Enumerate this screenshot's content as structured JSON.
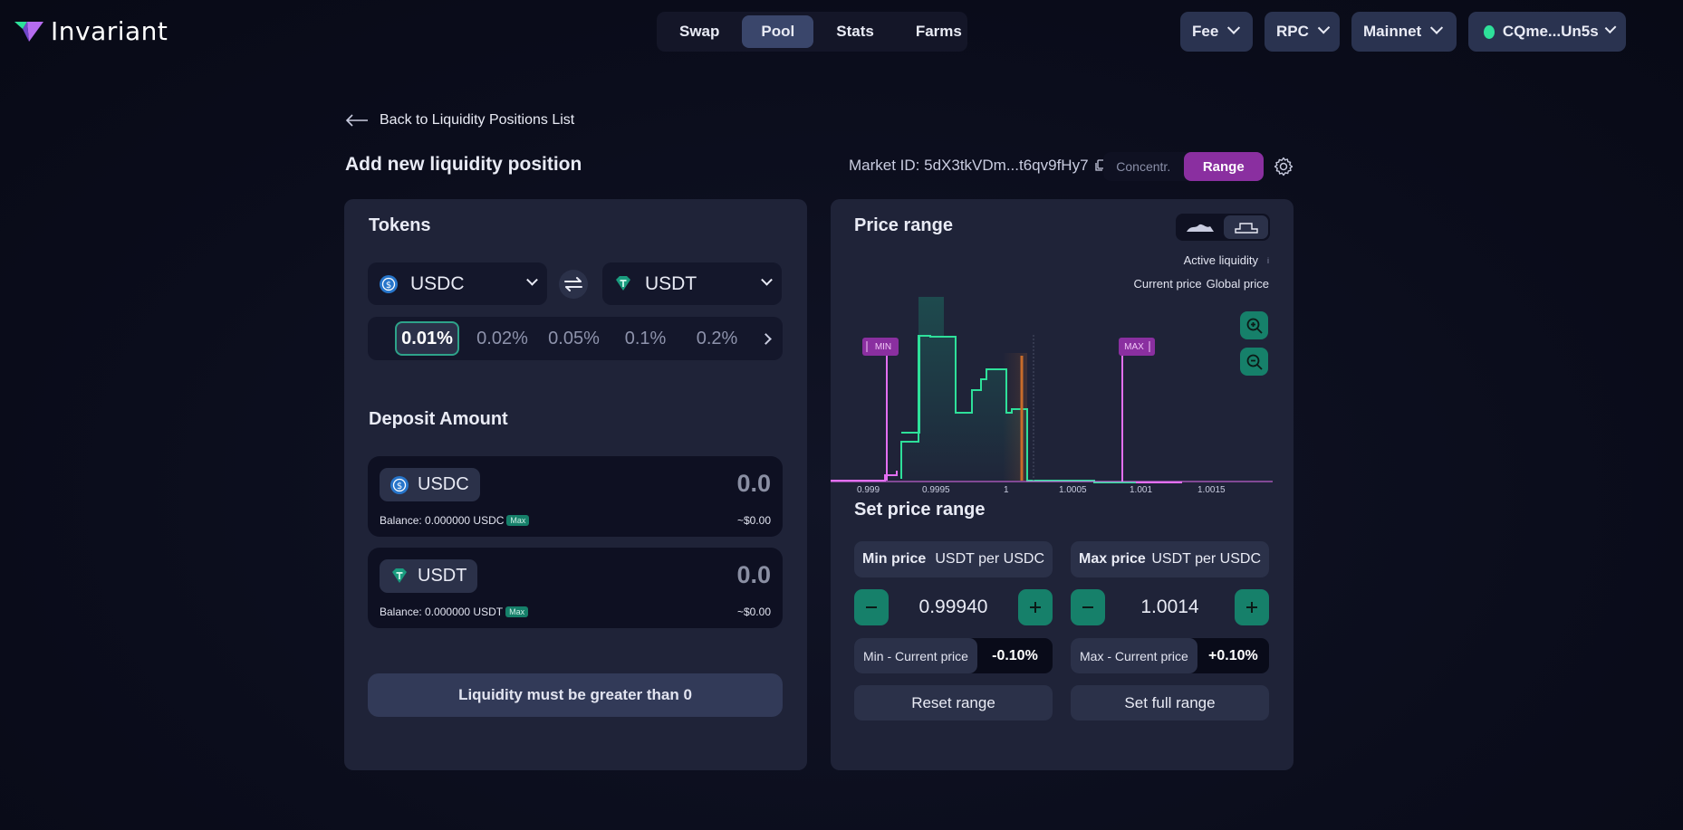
{
  "app": {
    "name": "Invariant"
  },
  "nav": {
    "tabs": [
      "Swap",
      "Pool",
      "Stats",
      "Farms"
    ],
    "active": "Pool"
  },
  "topbar": {
    "fee": "Fee",
    "rpc": "RPC",
    "network": "Mainnet",
    "wallet": "CQme...Un5s"
  },
  "header": {
    "back": "Back to Liquidity Positions List",
    "title": "Add new liquidity position",
    "market_id": "Market ID: 5dX3tkVDm...t6qv9fHy7",
    "mode_options": [
      "Concentr.",
      "Range"
    ],
    "mode_active": "Range"
  },
  "tokens": {
    "title": "Tokens",
    "token_a": "USDC",
    "token_b": "USDT",
    "fee_tiers": [
      "0.01%",
      "0.02%",
      "0.05%",
      "0.1%",
      "0.2%"
    ],
    "fee_active": "0.01%"
  },
  "deposit": {
    "title": "Deposit Amount",
    "items": [
      {
        "token": "USDC",
        "amount": "0.0",
        "balance": "Balance: 0.000000 USDC",
        "max": "Max",
        "usd": "~$0.00"
      },
      {
        "token": "USDT",
        "amount": "0.0",
        "balance": "Balance: 0.000000 USDT",
        "max": "Max",
        "usd": "~$0.00"
      }
    ],
    "button": "Liquidity must be greater than 0"
  },
  "price_range": {
    "title": "Price range",
    "legend_active": "Active liquidity",
    "legend_info": "i",
    "legend_current": "Current price",
    "legend_global": "Global price",
    "min_flag": "MIN",
    "max_flag": "MAX",
    "ticks": [
      "0.999",
      "0.9995",
      "1",
      "1.0005",
      "1.001",
      "1.0015"
    ]
  },
  "set_range": {
    "title": "Set price range",
    "min_label": "Min price",
    "max_label": "Max price",
    "unit": "USDT per USDC",
    "min_value": "0.99940",
    "max_value": "1.0014",
    "min_cur_label": "Min - Current price",
    "min_cur_value": "-0.10%",
    "max_cur_label": "Max - Current price",
    "max_cur_value": "+0.10%",
    "reset": "Reset range",
    "full": "Set full range"
  },
  "colors": {
    "accent": "#2ee09a",
    "brand": "#8a2fa0",
    "bound": "#e36ff2",
    "current": "#c86c2a"
  }
}
